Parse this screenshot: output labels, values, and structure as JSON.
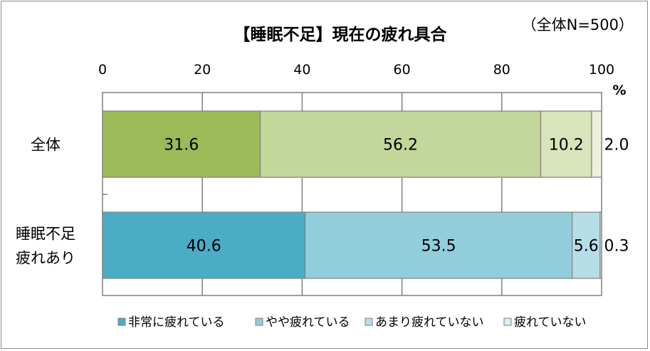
{
  "chart_data": {
    "type": "bar",
    "orientation": "horizontal",
    "stacked": true,
    "title": "【睡眠不足】現在の疲れ具合",
    "note": "（全体N=500）",
    "xlabel": "",
    "unit": "%",
    "xlim": [
      0,
      100
    ],
    "xticks": [
      "0",
      "20",
      "40",
      "60",
      "80",
      "100"
    ],
    "grid": true,
    "legend_position": "bottom",
    "categories": [
      [
        "全体"
      ],
      [
        "睡眠不足",
        "疲れあり"
      ]
    ],
    "series": [
      {
        "name": "非常に疲れている",
        "values": [
          31.6,
          40.6
        ],
        "labels": [
          "31.6",
          "40.6"
        ],
        "colors": [
          "#9bbb59",
          "#4bacc6"
        ]
      },
      {
        "name": "やや疲れている",
        "values": [
          56.2,
          53.5
        ],
        "labels": [
          "56.2",
          "53.5"
        ],
        "colors": [
          "#c4d79b",
          "#92cddc"
        ]
      },
      {
        "name": "あまり疲れていない",
        "values": [
          10.2,
          5.6
        ],
        "labels": [
          "10.2",
          "5.6"
        ],
        "colors": [
          "#d8e4bc",
          "#b7dee8"
        ]
      },
      {
        "name": "疲れていない",
        "values": [
          2.0,
          0.3
        ],
        "labels": [
          "2.0",
          "0.3"
        ],
        "colors": [
          "#ebf1de",
          "#daeef3"
        ]
      }
    ],
    "legend_colors": [
      "#4bacc6",
      "#92cddc",
      "#b7dee8",
      "#daeef3"
    ]
  }
}
